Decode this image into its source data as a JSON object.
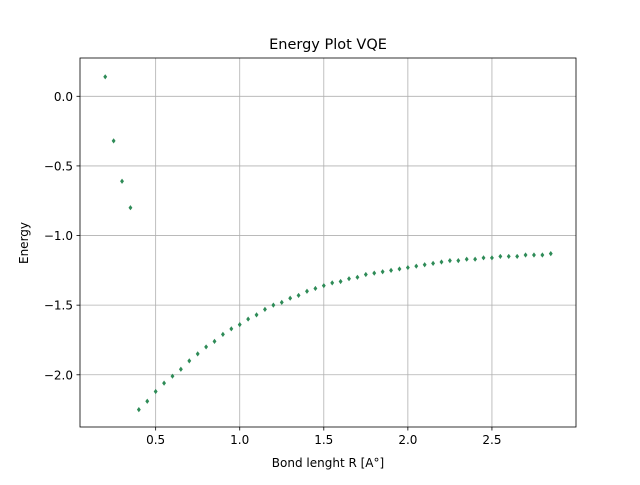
{
  "chart_data": {
    "type": "scatter",
    "title": "Energy Plot VQE",
    "xlabel": "Bond lenght R [A°]",
    "ylabel": "Energy",
    "xlim": [
      0.05,
      3.0
    ],
    "ylim": [
      -2.375,
      0.275
    ],
    "x_ticks": [
      0.5,
      1.0,
      1.5,
      2.0,
      2.5
    ],
    "x_tick_labels": [
      "0.5",
      "1.0",
      "1.5",
      "2.0",
      "2.5"
    ],
    "y_ticks": [
      0.0,
      -0.5,
      -1.0,
      -1.5,
      -2.0
    ],
    "y_tick_labels": [
      "0.0",
      "−0.5",
      "−1.0",
      "−1.5",
      "−2.0"
    ],
    "grid": true,
    "legend": "none",
    "marker_color": "#2e8b57",
    "series": [
      {
        "x": [
          0.2,
          0.25,
          0.3,
          0.35,
          0.4,
          0.45,
          0.5,
          0.55,
          0.6,
          0.65,
          0.7,
          0.75,
          0.8,
          0.85,
          0.9,
          0.95,
          1.0,
          1.05,
          1.1,
          1.15,
          1.2,
          1.25,
          1.3,
          1.35,
          1.4,
          1.45,
          1.5,
          1.55,
          1.6,
          1.65,
          1.7,
          1.75,
          1.8,
          1.85,
          1.9,
          1.95,
          2.0,
          2.05,
          2.1,
          2.15,
          2.2,
          2.25,
          2.3,
          2.35,
          2.4,
          2.45,
          2.5,
          2.55,
          2.6,
          2.65,
          2.7,
          2.75,
          2.8,
          2.85
        ],
        "y": [
          0.14,
          -0.32,
          -0.61,
          -0.8,
          -2.25,
          -2.19,
          -2.12,
          -2.06,
          -2.01,
          -1.96,
          -1.9,
          -1.85,
          -1.8,
          -1.76,
          -1.71,
          -1.67,
          -1.64,
          -1.6,
          -1.57,
          -1.53,
          -1.5,
          -1.48,
          -1.45,
          -1.43,
          -1.4,
          -1.38,
          -1.36,
          -1.34,
          -1.33,
          -1.31,
          -1.3,
          -1.28,
          -1.27,
          -1.26,
          -1.25,
          -1.24,
          -1.23,
          -1.22,
          -1.21,
          -1.2,
          -1.19,
          -1.18,
          -1.18,
          -1.17,
          -1.17,
          -1.16,
          -1.16,
          -1.15,
          -1.15,
          -1.15,
          -1.14,
          -1.14,
          -1.14,
          -1.13
        ]
      }
    ]
  }
}
